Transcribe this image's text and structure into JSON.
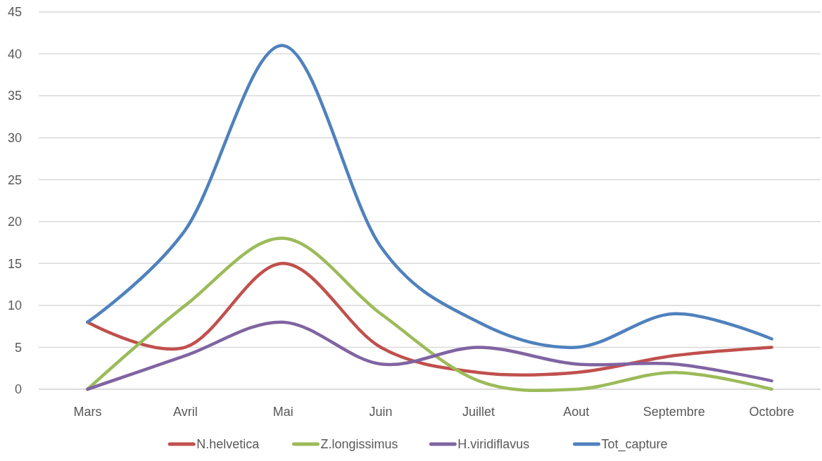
{
  "chart_data": {
    "type": "line",
    "categories": [
      "Mars",
      "Avril",
      "Mai",
      "Juin",
      "Juillet",
      "Aout",
      "Septembre",
      "Octobre"
    ],
    "series": [
      {
        "name": "N.helvetica",
        "color": "#c0504d",
        "values": [
          8,
          5,
          15,
          5,
          2,
          2,
          4,
          5
        ]
      },
      {
        "name": "Z.longissimus",
        "color": "#9bbb59",
        "values": [
          0,
          10,
          18,
          9,
          1,
          0,
          2,
          0
        ]
      },
      {
        "name": "H.viridiflavus",
        "color": "#8064a2",
        "values": [
          0,
          4,
          8,
          3,
          5,
          3,
          3,
          1
        ]
      },
      {
        "name": "Tot_capture",
        "color": "#4f81bd",
        "values": [
          8,
          19,
          41,
          17,
          8,
          5,
          9,
          6
        ]
      }
    ],
    "ylim": [
      0,
      45
    ],
    "yticks": [
      0,
      5,
      10,
      15,
      20,
      25,
      30,
      35,
      40,
      45
    ],
    "grid": "y",
    "legend": "bottom",
    "line_style": "solid"
  }
}
